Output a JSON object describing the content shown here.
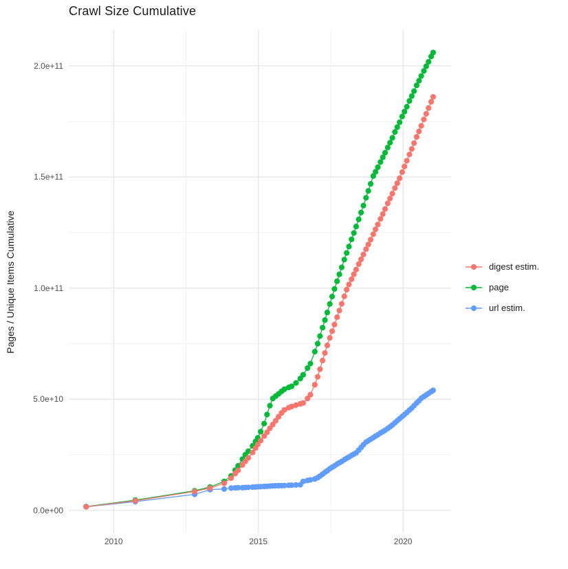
{
  "chart_data": {
    "type": "line",
    "title": "Crawl Size Cumulative",
    "xlabel": "",
    "ylabel": "Pages / Unique Items Cumulative",
    "grid": "on",
    "legend_position": "right",
    "y_unit_multiplier": 1000000000,
    "y_unit_note": "values stored in billions (1e9) of pages / unique items",
    "xlim": [
      2008.45,
      2021.66
    ],
    "ylim_billions": [
      -10.3,
      216.3
    ],
    "x_ticks": {
      "values": [
        2010,
        2015,
        2020
      ],
      "labels": [
        "2010",
        "2015",
        "2020"
      ]
    },
    "x_minor_ticks": [
      2012.5,
      2017.5
    ],
    "y_ticks": {
      "values_billions": [
        0,
        50,
        100,
        150,
        200
      ],
      "labels": [
        "0.0e+00",
        "5.0e+10",
        "1.0e+11",
        "1.5e+11",
        "2.0e+11"
      ]
    },
    "y_minor_ticks_billions": [
      25,
      75,
      125,
      175
    ],
    "x": [
      2009.05,
      2010.75,
      2012.8,
      2013.33,
      2013.82,
      2014.06,
      2014.2,
      2014.3,
      2014.45,
      2014.55,
      2014.65,
      2014.8,
      2014.9,
      2014.98,
      2015.08,
      2015.2,
      2015.3,
      2015.4,
      2015.5,
      2015.6,
      2015.7,
      2015.8,
      2015.9,
      2016.05,
      2016.15,
      2016.3,
      2016.45,
      2016.55,
      2016.7,
      2016.8,
      2016.95,
      2017.05,
      2017.13,
      2017.22,
      2017.3,
      2017.38,
      2017.47,
      2017.55,
      2017.63,
      2017.72,
      2017.8,
      2017.88,
      2017.97,
      2018.05,
      2018.13,
      2018.22,
      2018.3,
      2018.38,
      2018.47,
      2018.55,
      2018.63,
      2018.72,
      2018.8,
      2018.88,
      2018.97,
      2019.05,
      2019.13,
      2019.22,
      2019.3,
      2019.38,
      2019.47,
      2019.55,
      2019.63,
      2019.72,
      2019.8,
      2019.88,
      2019.97,
      2020.05,
      2020.13,
      2020.22,
      2020.3,
      2020.38,
      2020.47,
      2020.55,
      2020.63,
      2020.72,
      2020.8,
      2020.88,
      2020.97,
      2021.04
    ],
    "series": [
      {
        "name": "digest estim.",
        "color": "#F8766D",
        "values_billions": [
          1.6,
          4.3,
          8.5,
          10.0,
          12.2,
          14.5,
          16.5,
          18.0,
          20.4,
          22.0,
          23.6,
          26.0,
          28.0,
          29.6,
          31.4,
          33.4,
          35.1,
          36.9,
          38.6,
          40.3,
          42.1,
          43.8,
          45.2,
          46.2,
          46.7,
          47.3,
          47.9,
          48.3,
          50.3,
          52.0,
          56.5,
          60.1,
          63.5,
          67.4,
          70.8,
          74.2,
          77.6,
          80.6,
          83.6,
          86.9,
          89.9,
          92.9,
          96.3,
          99.3,
          101.6,
          104.0,
          106.2,
          108.3,
          110.8,
          112.9,
          115.1,
          117.5,
          119.6,
          121.8,
          124.2,
          126.4,
          128.6,
          131.1,
          133.3,
          135.6,
          138.1,
          140.3,
          142.5,
          145.0,
          147.2,
          149.4,
          152.2,
          154.7,
          157.3,
          160.1,
          162.6,
          165.2,
          168.0,
          170.5,
          173.0,
          175.9,
          178.4,
          181.0,
          183.8,
          186.0
        ]
      },
      {
        "name": "page",
        "color": "#00BA38",
        "values_billions": [
          1.7,
          4.6,
          8.8,
          10.5,
          13.0,
          15.5,
          18.1,
          20.0,
          23.0,
          25.0,
          26.6,
          29.0,
          31.0,
          32.6,
          35.4,
          39.0,
          43.1,
          47.1,
          50.3,
          51.4,
          52.4,
          53.5,
          54.5,
          55.3,
          55.8,
          57.3,
          59.3,
          61.0,
          64.0,
          66.0,
          71.4,
          75.0,
          78.4,
          82.2,
          85.6,
          89.0,
          92.8,
          96.2,
          99.6,
          103.1,
          106.2,
          109.3,
          112.8,
          115.8,
          118.7,
          121.9,
          124.8,
          127.7,
          130.9,
          134.0,
          137.1,
          140.6,
          143.7,
          146.9,
          150.4,
          152.3,
          154.4,
          156.7,
          158.8,
          160.9,
          163.2,
          165.4,
          167.6,
          170.2,
          172.4,
          174.6,
          177.2,
          179.4,
          181.6,
          184.2,
          186.4,
          188.6,
          191.2,
          193.3,
          195.4,
          197.7,
          199.8,
          201.8,
          204.2,
          206.0
        ]
      },
      {
        "name": "url estim.",
        "color": "#619CFF",
        "values_billions": [
          1.6,
          3.9,
          7.2,
          9.3,
          9.6,
          10.0,
          10.1,
          10.15,
          10.2,
          10.3,
          10.35,
          10.45,
          10.5,
          10.6,
          10.65,
          10.75,
          10.8,
          10.9,
          11.0,
          11.05,
          11.1,
          11.1,
          11.15,
          11.25,
          11.3,
          11.4,
          11.5,
          13.0,
          13.4,
          13.7,
          14.1,
          14.7,
          15.4,
          16.3,
          17.1,
          17.8,
          18.7,
          19.4,
          20.0,
          20.8,
          21.4,
          22.0,
          22.8,
          23.4,
          24.0,
          24.7,
          25.3,
          25.9,
          27.1,
          28.3,
          29.5,
          30.7,
          31.3,
          32.0,
          32.7,
          33.4,
          34.0,
          34.8,
          35.4,
          36.0,
          36.8,
          37.6,
          38.4,
          39.4,
          40.3,
          41.2,
          42.2,
          43.1,
          44.0,
          45.1,
          46.0,
          47.1,
          48.3,
          49.3,
          50.4,
          51.2,
          51.9,
          52.6,
          53.4,
          54.0
        ]
      }
    ],
    "style": {
      "background": "#ffffff",
      "grid_major_color": "#e6e6e6",
      "grid_minor_color": "#f1f1f1",
      "tick_label_color": "#4d4d4d",
      "text_color": "#1a1a1a"
    }
  },
  "legend": {
    "items": [
      {
        "label": "digest estim.",
        "color": "#F8766D"
      },
      {
        "label": "page",
        "color": "#00BA38"
      },
      {
        "label": "url estim.",
        "color": "#619CFF"
      }
    ]
  }
}
